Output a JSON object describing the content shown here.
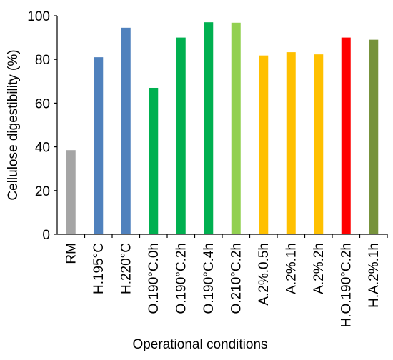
{
  "chart_data": {
    "type": "bar",
    "title": "",
    "xlabel": "Operational conditions",
    "ylabel": "Cellulose digestibility (%)",
    "ylim": [
      0,
      100
    ],
    "yticks": [
      0,
      20,
      40,
      60,
      80,
      100
    ],
    "grid": false,
    "legend": "none",
    "categories": [
      "RM",
      "H.195°C",
      "H.220°C",
      "O.190°C.0h",
      "O.190°C.2h",
      "O.190°C.4h",
      "O.210°C.2h",
      "A.2%.0.5h",
      "A.2%.1h",
      "A.2%.2h",
      "H.O.190°C.2h",
      "H.A.2%.1h"
    ],
    "values": [
      38.5,
      81,
      94.5,
      67,
      90,
      97,
      96.8,
      81.8,
      83.3,
      82.3,
      90,
      89
    ],
    "colors": [
      "#a5a5a5",
      "#4f81bd",
      "#4f81bd",
      "#00b050",
      "#00b050",
      "#00b050",
      "#92d050",
      "#ffc000",
      "#ffc000",
      "#ffc000",
      "#ff0000",
      "#77933c"
    ]
  }
}
